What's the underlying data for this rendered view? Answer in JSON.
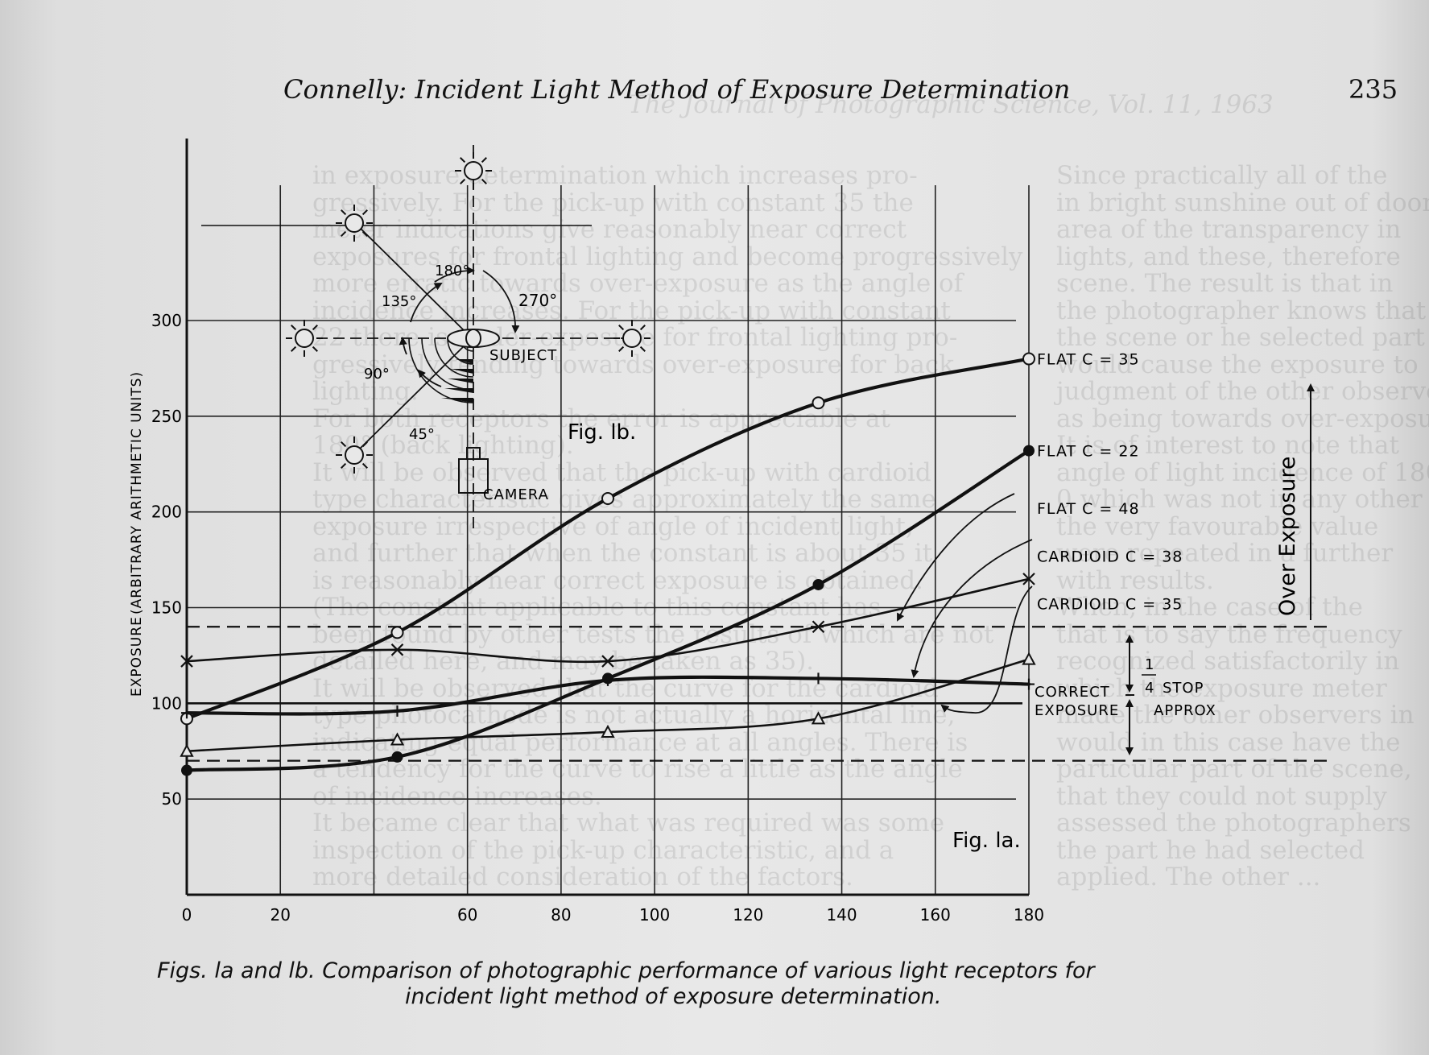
{
  "header": {
    "running_title": "Connelly: Incident Light Method of Exposure Determination",
    "page_number": "235"
  },
  "bleed_through": {
    "running_title": "The Journal of Photographic Science, Vol. 11, 1963",
    "column_left": [
      "in exposure determination which increases pro-",
      "gressively. For the pick-up with constant 35 the",
      "meter indications give reasonably near correct",
      "exposures for frontal lighting and become progressively",
      "more erratic towards over-exposure as the angle of",
      "incidence increases. For the pick-up with constant",
      "22 there is under-exposure for frontal lighting pro-",
      "gressively tending towards over-exposure for back",
      "lighting.",
      "For both receptors the error is appreciable at",
      "180° (back lighting).",
      "It will be observed that the pick-up with cardioid",
      "type characteristic gives approximately the same",
      "exposure irrespective of angle of incident light,",
      "and further that when the constant is about 35 it",
      "is reasonably near correct exposure is obtained.",
      "(The constant applicable to this constant has",
      "been found by other tests the results of which are not",
      "detailed here, and may be taken as 35).",
      "It will be observed that the curve for the cardioid",
      "type photocathode is not actually a horizontal line,",
      "indicating equal performance at all angles. There is",
      "a tendency for the curve to rise a little as the angle",
      "of incidence increases.",
      "It became clear that what was required was some",
      "inspection of the pick-up characteristic, and a",
      "more detailed consideration of the factors."
    ],
    "column_right": [
      "Since practically all of the",
      "in bright sunshine out of doors",
      "area of the transparency in",
      "lights, and these, therefore",
      "scene. The result is that in",
      "the photographer knows that",
      "the scene or he selected part",
      "would cause the exposure to",
      "judgment of the other observers",
      "as being towards over-exposure.",
      "It is of interest to note that",
      "angle of light incidence of 180",
      "0 which was not in any other",
      "the very favourable value",
      "were repeated in a further",
      "with results.",
      "When, in the case of the",
      "that is to say the frequency",
      "recognized satisfactorily in",
      "which the exposure meter",
      "made the other observers in",
      "would in this case have the",
      "particular part of the scene,",
      "that they could not supply",
      "assessed the photographers",
      "the part he had selected",
      "applied. The other ..."
    ]
  },
  "figure_1a": {
    "label": "Fig. la.",
    "ylabel_left": "EXPOSURE",
    "ylabel_right": "(ARBITRARY ARITHMETIC UNITS)",
    "side_label": "Over Exposure",
    "stop_label_one": "1",
    "stop_label_four": "4",
    "stop_label_word": "STOP",
    "stop_label_approx": "APPROX",
    "correct_label_line1": "CORRECT",
    "correct_label_line2": "EXPOSURE"
  },
  "figure_1b": {
    "label": "Fig. lb.",
    "subject_label": "SUBJECT",
    "camera_label": "CAMERA",
    "angles": [
      "180°",
      "135°",
      "270°",
      "90°",
      "45°"
    ]
  },
  "chart_data": {
    "type": "line",
    "title": "",
    "xlabel": "",
    "ylabel": "EXPOSURE (ARBITRARY ARITHMETIC UNITS)",
    "xlim": [
      0,
      180
    ],
    "ylim": [
      0,
      350
    ],
    "x_ticks": [
      0,
      20,
      60,
      80,
      100,
      120,
      140,
      160,
      180
    ],
    "x_tick_labels": [
      "0",
      "20",
      "60",
      "80",
      "100",
      "120",
      "140",
      "160",
      "180"
    ],
    "y_ticks": [
      50,
      100,
      150,
      200,
      250,
      300
    ],
    "y_tick_labels": [
      "50",
      "100",
      "150",
      "200",
      "250",
      "300"
    ],
    "grid": true,
    "reference_lines": [
      {
        "y": 140,
        "style": "dashed"
      },
      {
        "y": 100,
        "style": "solid"
      },
      {
        "y": 70,
        "style": "dashed"
      }
    ],
    "series": [
      {
        "name": "FLAT   C = 35",
        "marker": "open-circle",
        "weight": "heavy",
        "x": [
          0,
          45,
          90,
          135,
          180
        ],
        "y": [
          92,
          137,
          207,
          257,
          280
        ],
        "label_y": 280
      },
      {
        "name": "FLAT   C = 22",
        "marker": "filled-circle",
        "weight": "heavy",
        "x": [
          0,
          45,
          90,
          135,
          180
        ],
        "y": [
          65,
          72,
          113,
          162,
          232
        ],
        "label_y": 232
      },
      {
        "name": "FLAT   C = 48",
        "marker": "cross",
        "weight": "light",
        "x": [
          0,
          45,
          90,
          135,
          180
        ],
        "y": [
          122,
          128,
          122,
          140,
          165
        ],
        "label_y": 202
      },
      {
        "name": "CARDIOID   C = 38",
        "marker": "plus",
        "weight": "heavy",
        "x": [
          0,
          45,
          90,
          135,
          180
        ],
        "y": [
          95,
          96,
          112,
          113,
          110
        ],
        "label_y": 177
      },
      {
        "name": "CARDIOID   C = 35",
        "marker": "triangle",
        "weight": "light",
        "x": [
          0,
          45,
          90,
          135,
          180
        ],
        "y": [
          75,
          81,
          85,
          92,
          123
        ],
        "label_y": 152
      }
    ]
  },
  "caption": {
    "line1": "Figs. la and lb.  Comparison of photographic performance of various light receptors for",
    "line2": "incident light method of exposure determination."
  }
}
